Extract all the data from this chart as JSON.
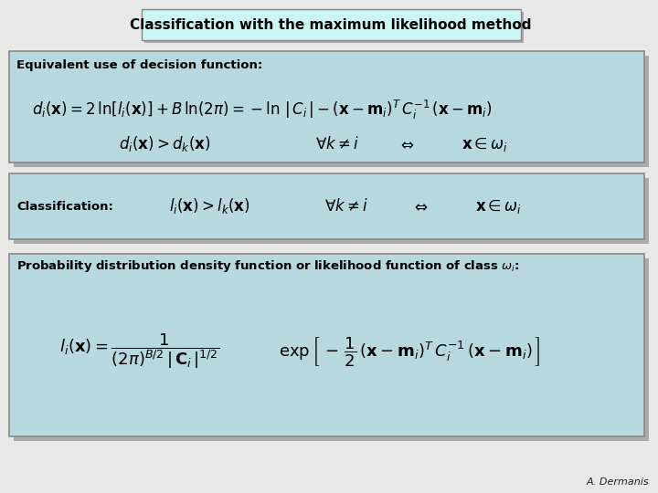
{
  "title": "Classification with the maximum likelihood method",
  "background_color": "#e8e8e8",
  "title_box_color": "#ccf5f5",
  "box_color": "#b8d8e0",
  "text_color": "#000000",
  "author": "A. Dermanis",
  "title_fontsize": 11,
  "body_fontsize": 9.5,
  "formula_fontsize": 13,
  "small_fontsize": 12
}
